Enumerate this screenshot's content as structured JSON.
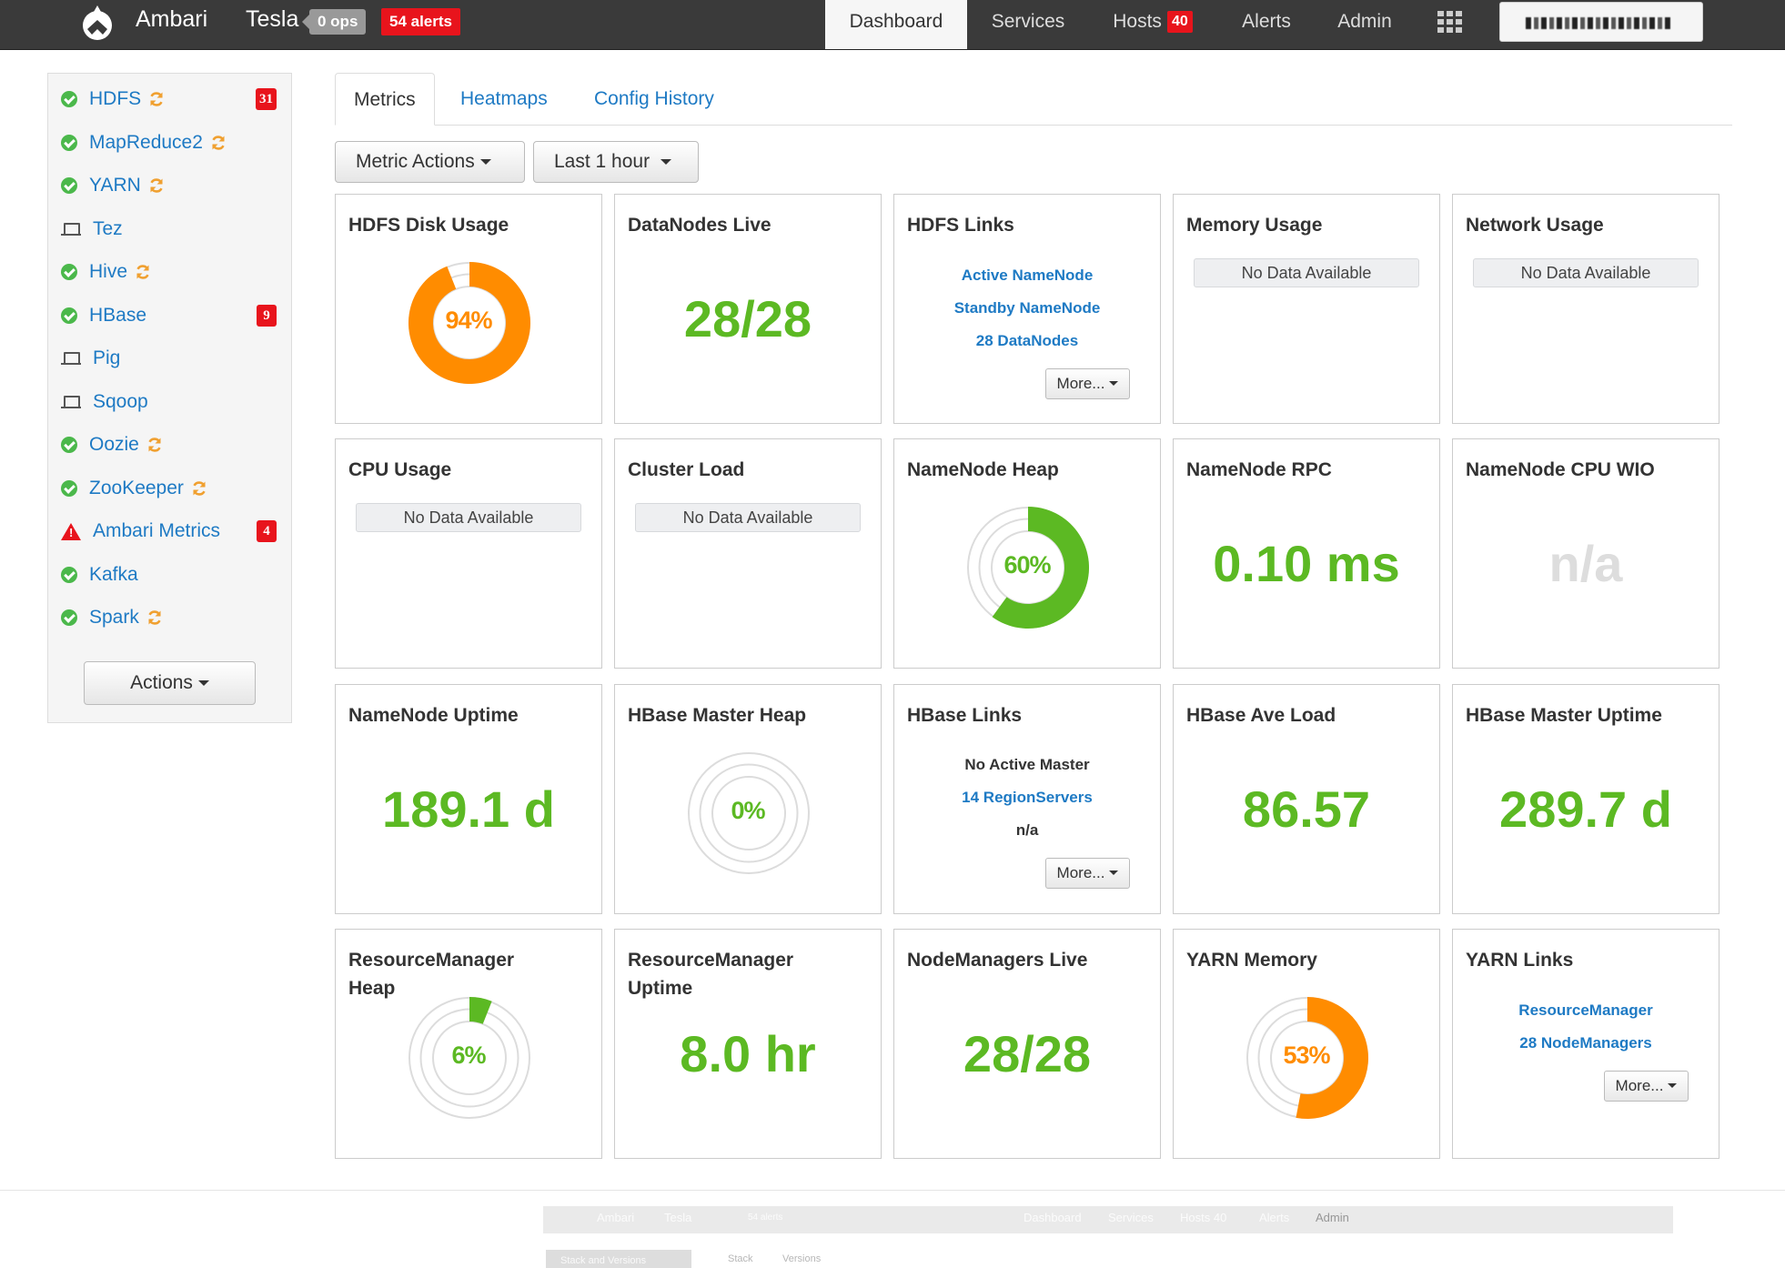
{
  "navbar": {
    "brand": "Ambari",
    "cluster_name": "Tesla",
    "ops_label": "0 ops",
    "alerts_label": "54 alerts",
    "tabs": [
      {
        "label": "Dashboard",
        "active": true
      },
      {
        "label": "Services"
      },
      {
        "label": "Hosts",
        "badge": "40"
      },
      {
        "label": "Alerts"
      },
      {
        "label": "Admin"
      }
    ]
  },
  "sidebar": {
    "services": [
      {
        "name": "HDFS",
        "status": "ok",
        "refresh": true,
        "alerts": "31"
      },
      {
        "name": "MapReduce2",
        "status": "ok",
        "refresh": true
      },
      {
        "name": "YARN",
        "status": "ok",
        "refresh": true
      },
      {
        "name": "Tez",
        "status": "client"
      },
      {
        "name": "Hive",
        "status": "ok",
        "refresh": true
      },
      {
        "name": "HBase",
        "status": "ok",
        "alerts": "9"
      },
      {
        "name": "Pig",
        "status": "client"
      },
      {
        "name": "Sqoop",
        "status": "client"
      },
      {
        "name": "Oozie",
        "status": "ok",
        "refresh": true
      },
      {
        "name": "ZooKeeper",
        "status": "ok",
        "refresh": true
      },
      {
        "name": "Ambari Metrics",
        "status": "alert",
        "alerts": "4"
      },
      {
        "name": "Kafka",
        "status": "ok"
      },
      {
        "name": "Spark",
        "status": "ok",
        "refresh": true
      }
    ],
    "actions_label": "Actions"
  },
  "tabs": {
    "metrics": "Metrics",
    "heatmaps": "Heatmaps",
    "config_history": "Config History"
  },
  "toolbar": {
    "metric_actions": "Metric Actions",
    "time_range": "Last 1 hour"
  },
  "colors": {
    "green": "#5cb923",
    "orange": "#ff8c00",
    "link": "#1e7ac4",
    "alert_red": "#e8141c"
  },
  "widgets": {
    "hdfs_disk": {
      "title": "HDFS Disk Usage",
      "percent_label": "94%",
      "fraction": 0.94
    },
    "datanodes_live": {
      "title": "DataNodes Live",
      "value": "28/28"
    },
    "hdfs_links": {
      "title": "HDFS Links",
      "links": [
        "Active NameNode",
        "Standby NameNode",
        "28 DataNodes"
      ],
      "more": "More..."
    },
    "memory_usage": {
      "title": "Memory Usage",
      "no_data": "No Data Available"
    },
    "network_usage": {
      "title": "Network Usage",
      "no_data": "No Data Available"
    },
    "cpu_usage": {
      "title": "CPU Usage",
      "no_data": "No Data Available"
    },
    "cluster_load": {
      "title": "Cluster Load",
      "no_data": "No Data Available"
    },
    "namenode_heap": {
      "title": "NameNode Heap",
      "percent_label": "60%",
      "fraction": 0.6
    },
    "namenode_rpc": {
      "title": "NameNode RPC",
      "value": "0.10 ms"
    },
    "namenode_cpu_wio": {
      "title": "NameNode CPU WIO",
      "value": "n/a"
    },
    "namenode_uptime": {
      "title": "NameNode Uptime",
      "value": "189.1 d"
    },
    "hbase_master_heap": {
      "title": "HBase Master Heap",
      "percent_label": "0%",
      "fraction": 0.0
    },
    "hbase_links": {
      "title": "HBase Links",
      "line1": "No Active Master",
      "link": "14 RegionServers",
      "line3": "n/a",
      "more": "More..."
    },
    "hbase_ave_load": {
      "title": "HBase Ave Load",
      "value": "86.57"
    },
    "hbase_master_uptime": {
      "title": "HBase Master Uptime",
      "value": "289.7 d"
    },
    "rm_heap": {
      "title_line1": "ResourceManager",
      "title_line2": "Heap",
      "percent_label": "6%",
      "fraction": 0.06
    },
    "rm_uptime": {
      "title_line1": "ResourceManager",
      "title_line2": "Uptime",
      "value": "8.0 hr"
    },
    "nodemanagers_live": {
      "title": "NodeManagers Live",
      "value": "28/28"
    },
    "yarn_memory": {
      "title": "YARN Memory",
      "percent_label": "53%",
      "fraction": 0.53
    },
    "yarn_links": {
      "title": "YARN Links",
      "links": [
        "ResourceManager",
        "28 NodeManagers"
      ],
      "more": "More..."
    }
  },
  "ghost_strip": {
    "brand": "Ambari",
    "cluster": "Tesla",
    "alerts": "54 alerts",
    "tabs": [
      "Dashboard",
      "Services",
      "Hosts 40",
      "Alerts",
      "Admin"
    ],
    "sub": [
      "Stack",
      "Versions"
    ],
    "button": "Stack and Versions"
  }
}
